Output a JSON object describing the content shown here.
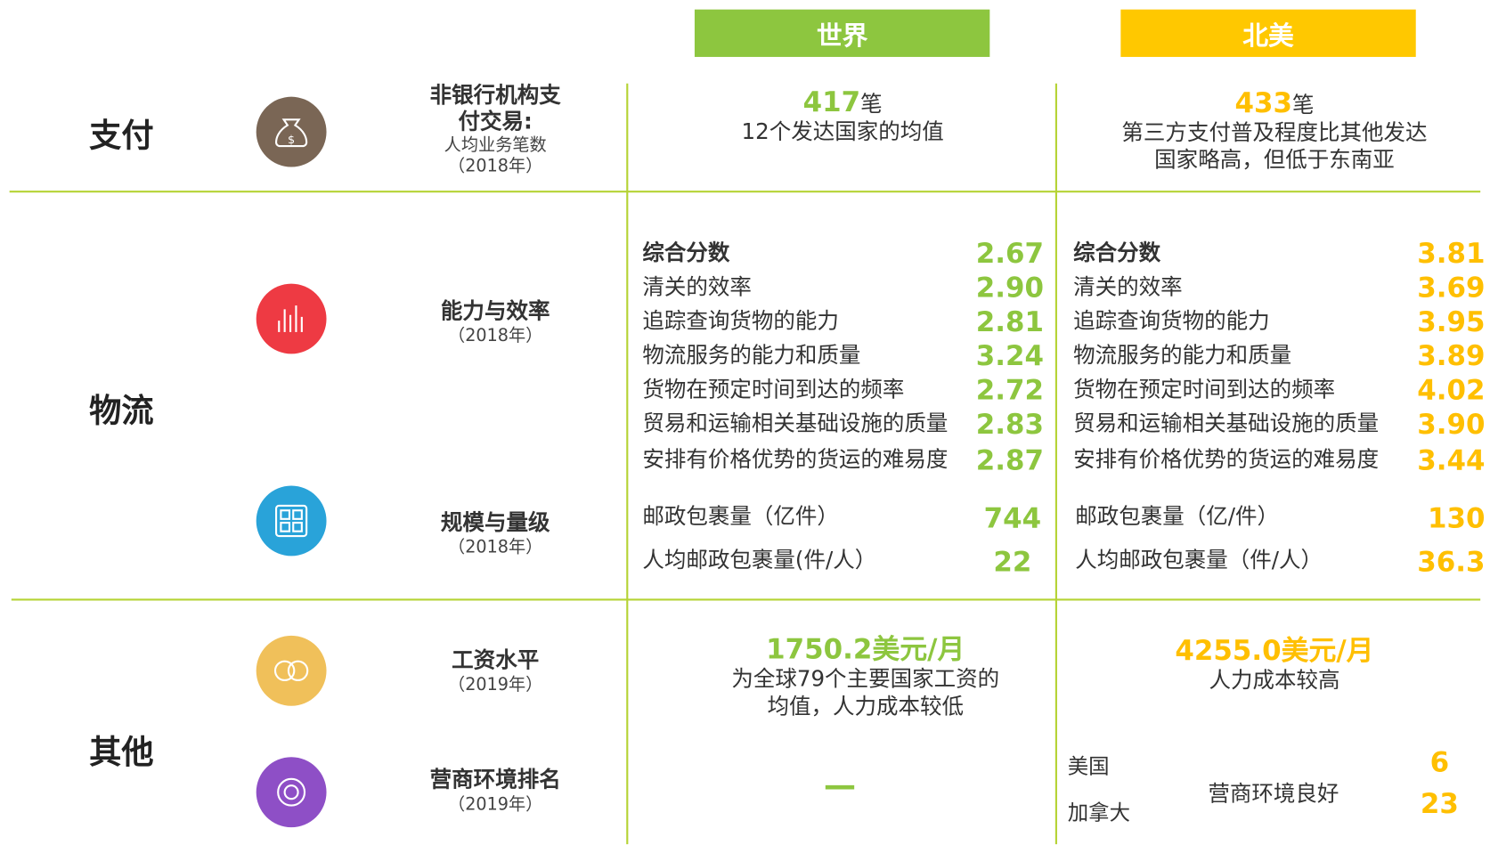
{
  "header": {
    "columns": [
      "世界",
      "北美"
    ]
  },
  "payment": {
    "section": "支付",
    "title": "非银行机构支付交易:",
    "subtitle": "人均业务笔数",
    "year": "（2018年）",
    "world": {
      "value": "417",
      "unit": "笔",
      "note": "12个发达国家的均值"
    },
    "na": {
      "value": "433",
      "unit": "笔",
      "note": "第三方支付普及程度比其他发达国家略高，但低于东南亚"
    }
  },
  "logistics": {
    "section": "物流",
    "capability": {
      "title": "能力与效率",
      "year": "（2018年）",
      "world": [
        [
          "综合分数",
          "2.67"
        ],
        [
          "清关的效率",
          "2.90"
        ],
        [
          "追踪查询货物的能力",
          "2.81"
        ],
        [
          "物流服务的能力和质量",
          "3.24"
        ],
        [
          "货物在预定时间到达的频率",
          "2.72"
        ],
        [
          "贸易和运输相关基础设施的质量",
          "2.83"
        ],
        [
          "安排有价格优势的货运的难易度",
          "2.87"
        ]
      ],
      "na": [
        [
          "综合分数",
          "3.81"
        ],
        [
          "清关的效率",
          "3.69"
        ],
        [
          "追踪查询货物的能力",
          "3.95"
        ],
        [
          "物流服务的能力和质量",
          "3.89"
        ],
        [
          "货物在预定时间到达的频率",
          "4.02"
        ],
        [
          "贸易和运输相关基础设施的质量",
          "3.90"
        ],
        [
          "安排有价格优势的货运的难易度",
          "3.44"
        ]
      ]
    },
    "scale": {
      "title": "规模与量级",
      "year": "（2018年）",
      "world": [
        [
          "邮政包裹量（亿件）",
          "744"
        ],
        [
          "人均邮政包裹量(件/人）",
          "22"
        ]
      ],
      "na": [
        [
          "邮政包裹量（亿/件）",
          "130"
        ],
        [
          "人均邮政包裹量（件/人）",
          "36.3"
        ]
      ]
    }
  },
  "other": {
    "section": "其他",
    "wage": {
      "title": "工资水平",
      "year": "（2019年）",
      "world": {
        "value": "1750.2美元/月",
        "note": "为全球79个主要国家工资的均值，人力成本较低"
      },
      "na": {
        "value": "4255.0美元/月",
        "note": "人力成本较高"
      }
    },
    "ranking": {
      "title": "营商环境排名",
      "year": "（2019年）",
      "world": "—",
      "na": {
        "countries": [
          [
            "美国",
            "6"
          ],
          [
            "加拿大",
            "23"
          ]
        ],
        "note": "营商环境良好"
      }
    }
  }
}
